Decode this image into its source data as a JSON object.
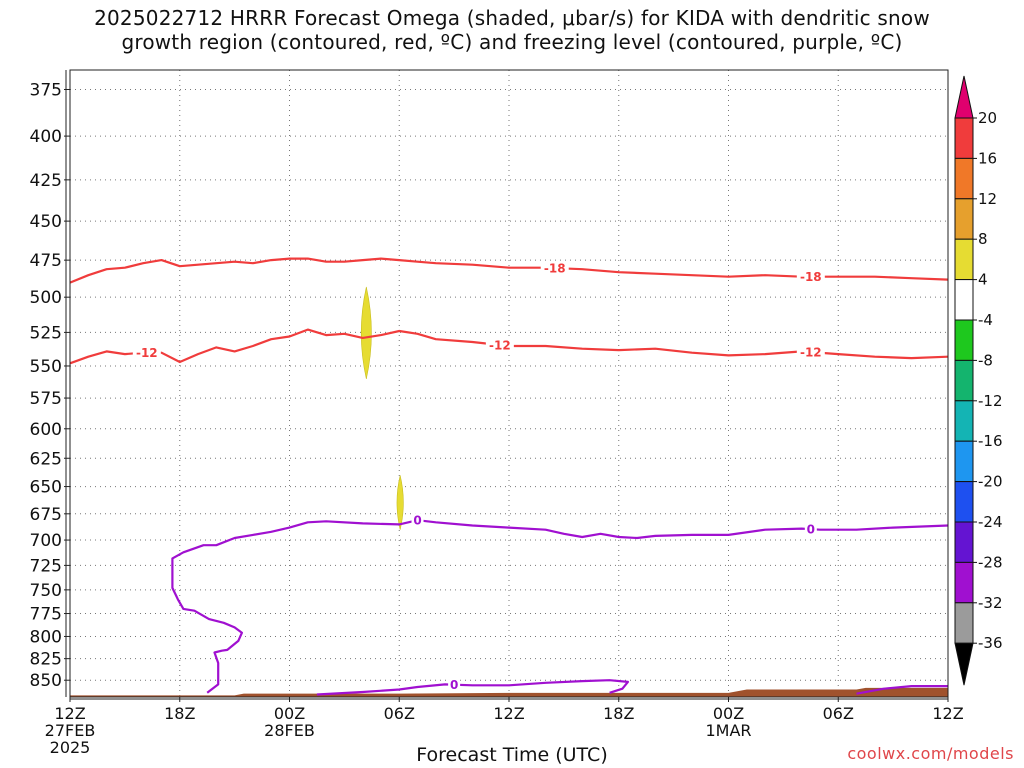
{
  "title_line1": "2025022712 HRRR Forecast Omega (shaded, μbar/s) for KIDA with dendritic snow",
  "title_line2": "growth region (contoured, red, ºC) and freezing level (contoured, purple, ºC)",
  "credit": "coolwx.com/models",
  "colors": {
    "dgz": "#f03c3c",
    "freezing": "#a010d0",
    "terrain": "#a0522d",
    "omega_pos": "#e6dc32"
  },
  "chart_data": {
    "type": "contour-timeheight",
    "xlabel": "Forecast Time (UTC)",
    "x_range_hours": [
      0,
      48
    ],
    "x_ticks": [
      {
        "h": 0,
        "lines": [
          "12Z",
          "27FEB",
          "2025"
        ]
      },
      {
        "h": 6,
        "lines": [
          "18Z"
        ]
      },
      {
        "h": 12,
        "lines": [
          "00Z",
          "28FEB"
        ]
      },
      {
        "h": 18,
        "lines": [
          "06Z"
        ]
      },
      {
        "h": 24,
        "lines": [
          "12Z"
        ]
      },
      {
        "h": 30,
        "lines": [
          "18Z"
        ]
      },
      {
        "h": 36,
        "lines": [
          "00Z",
          "1MAR"
        ]
      },
      {
        "h": 42,
        "lines": [
          "06Z"
        ]
      },
      {
        "h": 48,
        "lines": [
          "12Z"
        ]
      }
    ],
    "y_ticks": [
      "375",
      "400",
      "425",
      "450",
      "475",
      "500",
      "525",
      "550",
      "575",
      "600",
      "625",
      "650",
      "675",
      "700",
      "725",
      "750",
      "775",
      "800",
      "825",
      "850"
    ],
    "y_range_hpa": [
      365,
      870
    ],
    "y_scale": "log-pressure",
    "colorbar_labels": [
      "20",
      "16",
      "12",
      "8",
      "4",
      "-4",
      "-8",
      "-12",
      "-16",
      "-20",
      "-24",
      "-28",
      "-32",
      "-36"
    ],
    "colorbar_colors": [
      "#e0006e",
      "#f03c3c",
      "#f07828",
      "#e6a02d",
      "#e6dc32",
      "#ffffff",
      "#1ec81e",
      "#14b46e",
      "#14b4b4",
      "#1e96f0",
      "#1e50f0",
      "#6414d2",
      "#a010d0",
      "#9b9b9b",
      "#000000"
    ],
    "series": [
      {
        "name": "-18",
        "color": "#f03c3c",
        "points": [
          [
            0,
            490
          ],
          [
            1,
            485
          ],
          [
            2,
            481
          ],
          [
            3,
            480
          ],
          [
            4,
            477
          ],
          [
            5,
            475
          ],
          [
            6,
            479
          ],
          [
            7,
            478
          ],
          [
            8,
            477
          ],
          [
            9,
            476
          ],
          [
            10,
            477
          ],
          [
            11,
            475
          ],
          [
            12,
            474
          ],
          [
            13,
            474
          ],
          [
            14,
            476
          ],
          [
            15,
            476
          ],
          [
            16,
            475
          ],
          [
            17,
            474
          ],
          [
            18,
            475
          ],
          [
            19,
            476
          ],
          [
            20,
            477
          ],
          [
            22,
            478
          ],
          [
            24,
            480
          ],
          [
            26,
            480
          ],
          [
            28,
            481
          ],
          [
            30,
            483
          ],
          [
            32,
            484
          ],
          [
            34,
            485
          ],
          [
            36,
            486
          ],
          [
            38,
            485
          ],
          [
            40,
            486
          ],
          [
            42,
            486
          ],
          [
            44,
            486
          ],
          [
            46,
            487
          ],
          [
            48,
            488
          ]
        ],
        "labels": [
          {
            "h": 26.5,
            "text": "-18"
          },
          {
            "h": 40.5,
            "text": "-18"
          }
        ]
      },
      {
        "name": "-12",
        "color": "#f03c3c",
        "points": [
          [
            0,
            548
          ],
          [
            1,
            543
          ],
          [
            2,
            539
          ],
          [
            3,
            541
          ],
          [
            4,
            540
          ],
          [
            5,
            540
          ],
          [
            6,
            547
          ],
          [
            7,
            541
          ],
          [
            8,
            536
          ],
          [
            9,
            539
          ],
          [
            10,
            535
          ],
          [
            11,
            530
          ],
          [
            12,
            528
          ],
          [
            13,
            523
          ],
          [
            14,
            527
          ],
          [
            15,
            526
          ],
          [
            16,
            529
          ],
          [
            17,
            527
          ],
          [
            18,
            524
          ],
          [
            19,
            526
          ],
          [
            20,
            530
          ],
          [
            22,
            532
          ],
          [
            24,
            535
          ],
          [
            26,
            535
          ],
          [
            28,
            537
          ],
          [
            30,
            538
          ],
          [
            32,
            537
          ],
          [
            34,
            540
          ],
          [
            36,
            542
          ],
          [
            38,
            541
          ],
          [
            40,
            539
          ],
          [
            42,
            541
          ],
          [
            44,
            543
          ],
          [
            46,
            544
          ],
          [
            48,
            543
          ]
        ],
        "labels": [
          {
            "h": 4.2,
            "text": "-12"
          },
          {
            "h": 23.5,
            "text": "-12"
          },
          {
            "h": 40.5,
            "text": "-12"
          }
        ]
      },
      {
        "name": "0 (upper)",
        "color": "#a010d0",
        "points": [
          [
            7.5,
            865
          ],
          [
            8.1,
            855
          ],
          [
            8.1,
            830
          ],
          [
            7.9,
            818
          ],
          [
            8.3,
            816
          ],
          [
            8.6,
            815
          ],
          [
            9.2,
            805
          ],
          [
            9.4,
            796
          ],
          [
            9,
            790
          ],
          [
            8.4,
            785
          ],
          [
            7.6,
            781
          ],
          [
            6.8,
            772
          ],
          [
            6.2,
            770
          ],
          [
            5.9,
            760
          ],
          [
            5.6,
            748
          ],
          [
            5.6,
            728
          ],
          [
            5.6,
            718
          ],
          [
            6.2,
            712
          ],
          [
            7.3,
            705
          ],
          [
            8,
            705
          ],
          [
            9,
            698
          ],
          [
            10,
            695
          ],
          [
            11,
            692
          ],
          [
            12,
            688
          ],
          [
            13,
            683
          ],
          [
            14,
            682
          ],
          [
            16,
            684
          ],
          [
            18,
            685
          ],
          [
            19,
            681
          ],
          [
            20,
            683
          ],
          [
            22,
            686
          ],
          [
            24,
            688
          ],
          [
            26,
            690
          ],
          [
            27,
            694
          ],
          [
            28,
            697
          ],
          [
            29,
            694
          ],
          [
            30,
            697
          ],
          [
            31,
            698
          ],
          [
            32,
            696
          ],
          [
            34,
            695
          ],
          [
            36,
            695
          ],
          [
            38,
            690
          ],
          [
            40,
            689
          ],
          [
            41,
            690
          ],
          [
            43,
            690
          ],
          [
            45,
            688
          ],
          [
            48,
            686
          ]
        ],
        "labels": [
          {
            "h": 19,
            "text": "0"
          },
          {
            "h": 40.5,
            "text": "0"
          }
        ]
      },
      {
        "name": "0 (lower)",
        "color": "#a010d0",
        "points": [
          [
            13.5,
            867
          ],
          [
            16,
            864
          ],
          [
            18,
            861
          ],
          [
            19,
            858
          ],
          [
            20.5,
            855
          ],
          [
            22,
            856
          ],
          [
            24,
            856
          ],
          [
            26,
            853
          ],
          [
            28,
            851
          ],
          [
            29.5,
            850
          ],
          [
            30.5,
            852
          ],
          [
            30.2,
            860
          ],
          [
            29.5,
            865
          ]
        ],
        "labels": [
          {
            "h": 21,
            "text": "0"
          }
        ]
      },
      {
        "name": "0 (lower right)",
        "color": "#a010d0",
        "points": [
          [
            43,
            866
          ],
          [
            44.5,
            860
          ],
          [
            46,
            857
          ],
          [
            48,
            857
          ]
        ],
        "labels": []
      }
    ],
    "omega_areas": [
      {
        "value": "4 to 8",
        "color": "#e6dc32",
        "h": 16.2,
        "p_top": 493,
        "p_bottom": 560,
        "half_width_h": 0.35
      },
      {
        "value": "4 to 8",
        "color": "#e6dc32",
        "h": 18.05,
        "p_top": 640,
        "p_bottom": 690,
        "half_width_h": 0.22
      }
    ],
    "terrain_p": [
      [
        0,
        868
      ],
      [
        9,
        868
      ],
      [
        9.5,
        866
      ],
      [
        18,
        866
      ],
      [
        24,
        865
      ],
      [
        36,
        865
      ],
      [
        37,
        861
      ],
      [
        43,
        861
      ],
      [
        43.5,
        859
      ],
      [
        48,
        859
      ]
    ]
  }
}
